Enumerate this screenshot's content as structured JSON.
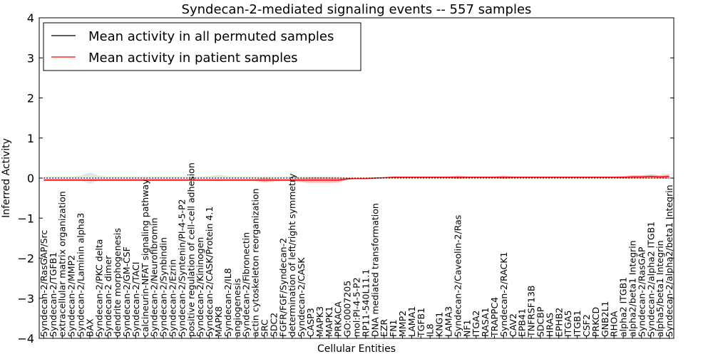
{
  "chart_data": {
    "type": "line",
    "title": "Syndecan-2-mediated signaling events -- 557 samples",
    "xlabel": "Cellular Entities",
    "ylabel": "Inferred Activity",
    "ylim": [
      -4,
      4
    ],
    "yticks": [
      -4,
      -3,
      -2,
      -1,
      0,
      1,
      2,
      3,
      4
    ],
    "ytick_labels": [
      "−4",
      "−3",
      "−2",
      "−1",
      "0",
      "1",
      "2",
      "3",
      "4"
    ],
    "grid": false,
    "legend": {
      "placement": "top-left",
      "entries": [
        {
          "label": "Mean activity in all permuted samples",
          "color": "#000000"
        },
        {
          "label": "Mean activity in patient samples",
          "color": "#ff0000"
        }
      ]
    },
    "categories": [
      "Syndecan-2/RasGAP/Src",
      "Syndecan-2/TGFB1",
      "extracellular matrix organization",
      "Syndecan-2/MMP2",
      "Syndecan-2/Laminin alpha3",
      "BAX",
      "Syndecan-2/PKC delta",
      "Syndecan-2 dimer",
      "dendrite morphogenesis",
      "Syndecan-2/GM-CSF",
      "Syndecan-2/TACI",
      "calcineurin-NFAT signaling pathway",
      "Syndecan-2/Neurofibromin",
      "Syndecan-2/Synbindin",
      "Syndecan-2/Ezrin",
      "Syndecan-2/Syntenin/PI-4-5-P2",
      "positive regulation of cell-cell adhesion",
      "Syndecan-2/Kininogen",
      "Syndecan-2/CASK/Protein 4.1",
      "MAPK8",
      "Syndecan-2/IL8",
      "angiogenesis",
      "Syndecan-2/Fibronectin",
      "actin cytoskeleton reorganization",
      "SRC",
      "SDC2",
      "FGFR/FGF/Syndecan-2",
      "determination of left/right symmetry",
      "Syndecan-2/CASK",
      "CASP3",
      "MAPK3",
      "MAPK1",
      "PRKACA",
      "GO:0007205",
      "mol:PI-4-5-P2",
      "RP11-540L11.1",
      "DNA mediated transformation",
      "EZR",
      "FN1",
      "MMP2",
      "LAMA1",
      "TGFB1",
      "IL8",
      "KNG1",
      "LAMA3",
      "Syndecan-2/Caveolin-2/Ras",
      "NF1",
      "ITGA2",
      "RASA1",
      "TRAPPC4",
      "Syndecan-2/RACK1",
      "CAV2",
      "EPB41",
      "TNFRSF13B",
      "SDCBP",
      "HRAS",
      "EPHB2",
      "ITGA5",
      "ITGB1",
      "CSF2",
      "PRKCD",
      "GNB2L1",
      "RHOA",
      "alpha2 ITGB1",
      "alpha2/beta1 Integrin",
      "Syndecan-2/RasGAP",
      "Syndecan-2/alpha2 ITGB1",
      "alpha5/beta1 Integrin",
      "Syndecan-2/alpha2/beta1 Integrin"
    ],
    "series": [
      {
        "name": "Mean activity in all permuted samples",
        "color": "#000000",
        "values": [
          0,
          0,
          0,
          0,
          0,
          0,
          0,
          0,
          0,
          0,
          0,
          0,
          0,
          0,
          0,
          0,
          0,
          0,
          0,
          0,
          0,
          0,
          0,
          0,
          0,
          0,
          0,
          0,
          0,
          0,
          0,
          0,
          0,
          0,
          0,
          0,
          0,
          0,
          0,
          0,
          0,
          0,
          0,
          0,
          0,
          0,
          0,
          0,
          0,
          0,
          0,
          0,
          0,
          0,
          0,
          0,
          0,
          0,
          0,
          0,
          0,
          0,
          0,
          0,
          0,
          0,
          0,
          0,
          0
        ],
        "band": [
          0.04,
          0.04,
          0.04,
          0.04,
          0.06,
          0.14,
          0.06,
          0.04,
          0.04,
          0.04,
          0.04,
          0.04,
          0.04,
          0.04,
          0.04,
          0.04,
          0.04,
          0.04,
          0.05,
          0.08,
          0.05,
          0.04,
          0.04,
          0.04,
          0.04,
          0.04,
          0.04,
          0.04,
          0.04,
          0.04,
          0.04,
          0.04,
          0.04,
          0.02,
          0.01,
          0.01,
          0.01,
          0.01,
          0.01,
          0.01,
          0.01,
          0.01,
          0.01,
          0.01,
          0.01,
          0.01,
          0.01,
          0.01,
          0.01,
          0.01,
          0.01,
          0.01,
          0.01,
          0.01,
          0.01,
          0.01,
          0.01,
          0.01,
          0.01,
          0.01,
          0.01,
          0.01,
          0.01,
          0.01,
          0.01,
          0.01,
          0.01,
          0.01,
          0.01
        ]
      },
      {
        "name": "Mean activity in patient samples",
        "color": "#ff0000",
        "values": [
          -0.05,
          -0.05,
          -0.05,
          -0.05,
          -0.05,
          -0.05,
          -0.05,
          -0.05,
          -0.05,
          -0.05,
          -0.05,
          -0.05,
          -0.05,
          -0.05,
          -0.05,
          -0.05,
          -0.05,
          -0.05,
          -0.05,
          -0.05,
          -0.05,
          -0.05,
          -0.05,
          -0.05,
          -0.05,
          -0.05,
          -0.05,
          -0.05,
          -0.05,
          -0.05,
          -0.05,
          -0.05,
          -0.05,
          -0.02,
          -0.01,
          -0.01,
          0,
          0.01,
          0.02,
          0.02,
          0.02,
          0.02,
          0.02,
          0.02,
          0.02,
          0.02,
          0.02,
          0.02,
          0.02,
          0.02,
          0.02,
          0.02,
          0.02,
          0.02,
          0.02,
          0.02,
          0.02,
          0.02,
          0.02,
          0.02,
          0.02,
          0.02,
          0.02,
          0.02,
          0.03,
          0.03,
          0.04,
          0.03,
          0.04
        ],
        "band": [
          0.02,
          0.02,
          0.02,
          0.02,
          0.02,
          0.02,
          0.02,
          0.02,
          0.02,
          0.02,
          0.02,
          0.02,
          0.02,
          0.02,
          0.02,
          0.02,
          0.02,
          0.02,
          0.02,
          0.02,
          0.02,
          0.02,
          0.02,
          0.02,
          0.06,
          0.03,
          0.02,
          0.02,
          0.05,
          0.07,
          0.07,
          0.07,
          0.06,
          0.02,
          0.01,
          0.01,
          0.01,
          0.01,
          0.02,
          0.02,
          0.02,
          0.02,
          0.02,
          0.02,
          0.02,
          0.04,
          0.02,
          0.02,
          0.02,
          0.02,
          0.04,
          0.02,
          0.02,
          0.02,
          0.02,
          0.02,
          0.02,
          0.02,
          0.02,
          0.02,
          0.02,
          0.02,
          0.02,
          0.03,
          0.04,
          0.04,
          0.05,
          0.04,
          0.06
        ]
      }
    ]
  }
}
